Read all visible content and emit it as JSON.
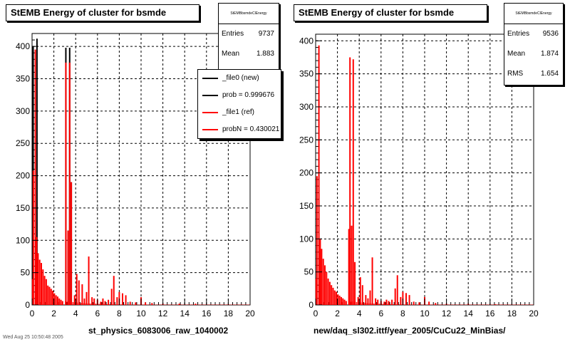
{
  "chart_data": [
    {
      "type": "bar",
      "title": "StEMB Energy of cluster for bsmde",
      "xlabel": "st_physics_6083006_raw_1040002",
      "ylabel": "",
      "xlim": [
        0,
        20
      ],
      "ylim": [
        0,
        420
      ],
      "x_ticks": [
        0,
        2,
        4,
        6,
        8,
        10,
        12,
        14,
        16,
        18,
        20
      ],
      "y_ticks": [
        0,
        50,
        100,
        150,
        200,
        250,
        300,
        350,
        400
      ],
      "grid": true,
      "stats": {
        "name": "StEMBbsmdeClEnergy",
        "rows": [
          {
            "k": "Entries",
            "v": "9737"
          },
          {
            "k": "Mean",
            "v": "1.883"
          }
        ]
      },
      "legend": [
        {
          "label": "_file0 (new)",
          "color": "#000000"
        },
        {
          "label": "prob = 0.999676",
          "color": "#000000"
        },
        {
          "label": "_file1 (ref)",
          "color": "#ff0000"
        },
        {
          "label": "probN = 0.430021",
          "color": "#ff0000"
        }
      ],
      "series": [
        {
          "color": "#000000",
          "spikes": [
            [
              0.1,
              400
            ],
            [
              0.45,
              412
            ],
            [
              3.1,
              398
            ],
            [
              3.3,
              115
            ],
            [
              3.45,
              398
            ],
            [
              3.6,
              190
            ]
          ]
        },
        {
          "color": "#ff0000",
          "spikes": [
            [
              0.05,
              40
            ],
            [
              0.12,
              208
            ],
            [
              0.3,
              395
            ],
            [
              0.42,
              105
            ],
            [
              0.55,
              80
            ],
            [
              0.7,
              70
            ],
            [
              0.85,
              65
            ],
            [
              1.0,
              55
            ],
            [
              1.15,
              45
            ],
            [
              1.3,
              40
            ],
            [
              1.45,
              30
            ],
            [
              1.6,
              28
            ],
            [
              1.75,
              25
            ],
            [
              1.9,
              22
            ],
            [
              2.05,
              18
            ],
            [
              2.2,
              15
            ],
            [
              2.35,
              13
            ],
            [
              2.5,
              10
            ],
            [
              2.65,
              8
            ],
            [
              2.8,
              6
            ],
            [
              3.1,
              375
            ],
            [
              3.3,
              115
            ],
            [
              3.45,
              375
            ],
            [
              3.6,
              190
            ],
            [
              3.9,
              15
            ],
            [
              4.1,
              48
            ],
            [
              4.3,
              38
            ],
            [
              4.6,
              32
            ],
            [
              4.8,
              10
            ],
            [
              5.0,
              20
            ],
            [
              5.2,
              75
            ],
            [
              5.5,
              12
            ],
            [
              5.7,
              10
            ],
            [
              6.0,
              8
            ],
            [
              6.3,
              5
            ],
            [
              6.5,
              10
            ],
            [
              6.7,
              6
            ],
            [
              7.0,
              8
            ],
            [
              7.3,
              25
            ],
            [
              7.5,
              45
            ],
            [
              7.8,
              12
            ],
            [
              8.0,
              20
            ],
            [
              8.3,
              18
            ],
            [
              8.6,
              15
            ],
            [
              9.0,
              5
            ],
            [
              9.5,
              4
            ],
            [
              10.0,
              12
            ],
            [
              10.4,
              4
            ],
            [
              11.0,
              3
            ],
            [
              12.0,
              2
            ],
            [
              13.5,
              2
            ],
            [
              15.0,
              2
            ],
            [
              18.0,
              1
            ]
          ]
        }
      ]
    },
    {
      "type": "bar",
      "title": "StEMB Energy of cluster for bsmde",
      "xlabel": "new/daq_sl302.ittf/year_2005/CuCu22_MinBias/",
      "ylabel": "",
      "xlim": [
        0,
        20
      ],
      "ylim": [
        0,
        410
      ],
      "x_ticks": [
        0,
        2,
        4,
        6,
        8,
        10,
        12,
        14,
        16,
        18,
        20
      ],
      "y_ticks": [
        0,
        50,
        100,
        150,
        200,
        250,
        300,
        350,
        400
      ],
      "grid": true,
      "stats": {
        "name": "StEMBbsmdeClEnergy",
        "rows": [
          {
            "k": "Entries",
            "v": "9536"
          },
          {
            "k": "Mean",
            "v": "1.874"
          },
          {
            "k": "RMS",
            "v": "1.654"
          }
        ]
      },
      "legend": [],
      "series": [
        {
          "color": "#ff0000",
          "spikes": [
            [
              0.05,
              40
            ],
            [
              0.12,
              195
            ],
            [
              0.3,
              393
            ],
            [
              0.42,
              100
            ],
            [
              0.55,
              85
            ],
            [
              0.7,
              70
            ],
            [
              0.85,
              60
            ],
            [
              1.0,
              50
            ],
            [
              1.15,
              40
            ],
            [
              1.3,
              35
            ],
            [
              1.45,
              30
            ],
            [
              1.6,
              26
            ],
            [
              1.75,
              22
            ],
            [
              1.9,
              20
            ],
            [
              2.05,
              16
            ],
            [
              2.2,
              14
            ],
            [
              2.35,
              12
            ],
            [
              2.5,
              10
            ],
            [
              2.65,
              8
            ],
            [
              2.8,
              6
            ],
            [
              3.05,
              115
            ],
            [
              3.15,
              375
            ],
            [
              3.3,
              120
            ],
            [
              3.45,
              372
            ],
            [
              3.6,
              65
            ],
            [
              3.9,
              12
            ],
            [
              4.1,
              42
            ],
            [
              4.3,
              30
            ],
            [
              4.6,
              15
            ],
            [
              4.8,
              10
            ],
            [
              5.0,
              22
            ],
            [
              5.2,
              72
            ],
            [
              5.5,
              10
            ],
            [
              5.7,
              8
            ],
            [
              6.0,
              6
            ],
            [
              6.3,
              5
            ],
            [
              6.5,
              8
            ],
            [
              6.7,
              6
            ],
            [
              7.0,
              8
            ],
            [
              7.3,
              25
            ],
            [
              7.5,
              45
            ],
            [
              7.8,
              12
            ],
            [
              8.0,
              20
            ],
            [
              8.3,
              18
            ],
            [
              8.6,
              15
            ],
            [
              9.0,
              5
            ],
            [
              9.5,
              4
            ],
            [
              10.0,
              12
            ],
            [
              10.4,
              5
            ],
            [
              11.0,
              3
            ],
            [
              12.0,
              2
            ],
            [
              14.0,
              2
            ],
            [
              16.5,
              1
            ]
          ]
        }
      ]
    }
  ],
  "footer": "Wed Aug 25 10:50:48 2005"
}
